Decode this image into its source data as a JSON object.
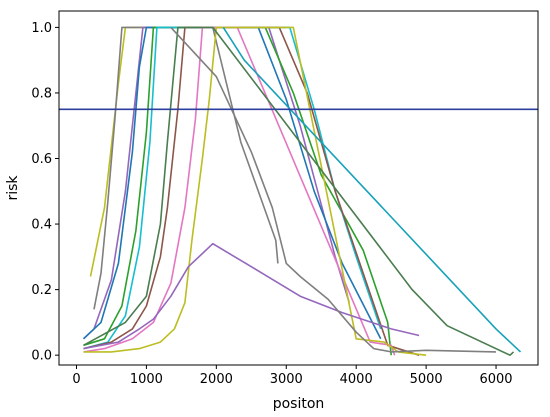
{
  "chart_data": {
    "type": "line",
    "xlabel": "positon",
    "ylabel": "risk",
    "xlim": [
      -250,
      6600
    ],
    "ylim": [
      -0.03,
      1.05
    ],
    "xticks": [
      0,
      1000,
      2000,
      3000,
      4000,
      5000,
      6000
    ],
    "xtick_labels": [
      "0",
      "1000",
      "2000",
      "3000",
      "4000",
      "5000",
      "6000"
    ],
    "yticks": [
      0.0,
      0.2,
      0.4,
      0.6,
      0.8,
      1.0
    ],
    "ytick_labels": [
      "0.0",
      "0.2",
      "0.4",
      "0.6",
      "0.8",
      "1.0"
    ],
    "grid": false,
    "threshold": {
      "y": 0.75,
      "color": "#2d3f9e"
    },
    "series": [
      {
        "color": "#bcbd22",
        "points": [
          [
            200,
            0.24
          ],
          [
            400,
            0.45
          ],
          [
            600,
            0.83
          ],
          [
            700,
            1.0
          ],
          [
            2900,
            1.0
          ],
          [
            3000,
            1.0
          ]
        ]
      },
      {
        "color": "#7f7f7f",
        "points": [
          [
            250,
            0.14
          ],
          [
            350,
            0.25
          ],
          [
            450,
            0.47
          ],
          [
            550,
            0.72
          ],
          [
            650,
            1.0
          ],
          [
            1950,
            1.0
          ],
          [
            2350,
            0.65
          ],
          [
            2850,
            0.35
          ],
          [
            2880,
            0.28
          ]
        ]
      },
      {
        "color": "#9467bd",
        "points": [
          [
            100,
            0.05
          ],
          [
            250,
            0.08
          ],
          [
            500,
            0.23
          ],
          [
            700,
            0.5
          ],
          [
            850,
            0.8
          ],
          [
            950,
            1.0
          ],
          [
            2750,
            1.0
          ],
          [
            3200,
            0.7
          ],
          [
            3500,
            0.46
          ],
          [
            3700,
            0.3
          ],
          [
            3900,
            0.16
          ]
        ]
      },
      {
        "color": "#1f77b4",
        "points": [
          [
            100,
            0.05
          ],
          [
            350,
            0.1
          ],
          [
            600,
            0.28
          ],
          [
            800,
            0.62
          ],
          [
            900,
            0.88
          ],
          [
            1000,
            1.0
          ],
          [
            2600,
            1.0
          ],
          [
            3000,
            0.78
          ],
          [
            3400,
            0.5
          ],
          [
            3800,
            0.28
          ],
          [
            4350,
            0.05
          ]
        ]
      },
      {
        "color": "#2ca02c",
        "points": [
          [
            100,
            0.03
          ],
          [
            400,
            0.05
          ],
          [
            650,
            0.15
          ],
          [
            850,
            0.38
          ],
          [
            1000,
            0.68
          ],
          [
            1100,
            1.0
          ],
          [
            2700,
            1.0
          ],
          [
            3100,
            0.8
          ],
          [
            3500,
            0.55
          ],
          [
            4100,
            0.32
          ],
          [
            4450,
            0.1
          ],
          [
            4500,
            0.0
          ]
        ]
      },
      {
        "color": "#17becf",
        "points": [
          [
            100,
            0.02
          ],
          [
            450,
            0.04
          ],
          [
            700,
            0.12
          ],
          [
            900,
            0.33
          ],
          [
            1050,
            0.65
          ],
          [
            1150,
            1.0
          ],
          [
            3050,
            1.0
          ],
          [
            3400,
            0.75
          ],
          [
            3700,
            0.5
          ],
          [
            4000,
            0.3
          ],
          [
            4350,
            0.08
          ]
        ]
      },
      {
        "color": "#8c564b",
        "points": [
          [
            100,
            0.02
          ],
          [
            500,
            0.04
          ],
          [
            800,
            0.08
          ],
          [
            1000,
            0.15
          ],
          [
            1200,
            0.3
          ],
          [
            1300,
            0.45
          ],
          [
            1450,
            0.75
          ],
          [
            1550,
            1.0
          ],
          [
            2900,
            1.0
          ],
          [
            3300,
            0.8
          ],
          [
            3700,
            0.5
          ],
          [
            4100,
            0.25
          ],
          [
            4450,
            0.03
          ],
          [
            4900,
            0.0
          ]
        ]
      },
      {
        "color": "#e377c2",
        "points": [
          [
            100,
            0.01
          ],
          [
            400,
            0.02
          ],
          [
            800,
            0.05
          ],
          [
            1100,
            0.1
          ],
          [
            1350,
            0.22
          ],
          [
            1550,
            0.45
          ],
          [
            1700,
            0.72
          ],
          [
            1800,
            1.0
          ],
          [
            2300,
            1.0
          ],
          [
            4200,
            0.04
          ],
          [
            4500,
            0.03
          ],
          [
            4550,
            0.0
          ]
        ]
      },
      {
        "color": "#bcbd22",
        "points": [
          [
            100,
            0.01
          ],
          [
            500,
            0.01
          ],
          [
            900,
            0.02
          ],
          [
            1200,
            0.04
          ],
          [
            1400,
            0.08
          ],
          [
            1550,
            0.16
          ],
          [
            1650,
            0.35
          ],
          [
            1800,
            0.6
          ],
          [
            1900,
            0.78
          ],
          [
            2000,
            1.0
          ],
          [
            3100,
            1.0
          ],
          [
            4000,
            0.05
          ],
          [
            4400,
            0.04
          ],
          [
            4600,
            0.01
          ],
          [
            5000,
            0.0
          ]
        ]
      },
      {
        "color": "#4a7d4f",
        "points": [
          [
            100,
            0.03
          ],
          [
            700,
            0.1
          ],
          [
            1000,
            0.18
          ],
          [
            1200,
            0.4
          ],
          [
            1300,
            0.65
          ],
          [
            1450,
            1.0
          ],
          [
            1950,
            1.0
          ],
          [
            4800,
            0.2
          ],
          [
            5300,
            0.09
          ],
          [
            6200,
            0.0
          ],
          [
            6250,
            0.01
          ]
        ]
      },
      {
        "color": "#17a2b8",
        "points": [
          [
            2100,
            1.0
          ],
          [
            2400,
            0.9
          ],
          [
            6000,
            0.08
          ],
          [
            6350,
            0.01
          ]
        ]
      },
      {
        "color": "#9467bd",
        "points": [
          [
            100,
            0.02
          ],
          [
            600,
            0.04
          ],
          [
            900,
            0.08
          ],
          [
            1100,
            0.11
          ],
          [
            1350,
            0.18
          ],
          [
            1600,
            0.27
          ],
          [
            1950,
            0.34
          ],
          [
            2500,
            0.27
          ],
          [
            3200,
            0.18
          ],
          [
            3800,
            0.13
          ],
          [
            4500,
            0.08
          ],
          [
            4900,
            0.06
          ]
        ]
      },
      {
        "color": "#7f7f7f",
        "points": [
          [
            1350,
            1.0
          ],
          [
            2000,
            0.85
          ],
          [
            2500,
            0.62
          ],
          [
            2800,
            0.45
          ],
          [
            3000,
            0.28
          ],
          [
            3200,
            0.24
          ],
          [
            3600,
            0.17
          ],
          [
            4000,
            0.07
          ],
          [
            4250,
            0.02
          ],
          [
            4500,
            0.01
          ],
          [
            5000,
            0.015
          ],
          [
            6000,
            0.01
          ]
        ]
      }
    ]
  }
}
